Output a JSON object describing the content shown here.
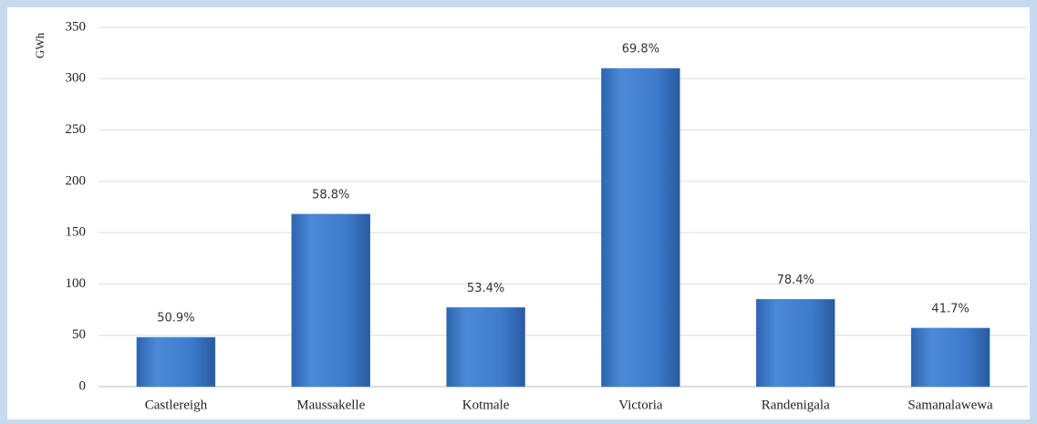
{
  "chart_data": {
    "type": "bar",
    "y_label": "GWh",
    "categories": [
      "Castlereigh",
      "Maussakelle",
      "Kotmale",
      "Victoria",
      "Randenigala",
      "Samanalawewa"
    ],
    "values": [
      48,
      168,
      77,
      310,
      85,
      57
    ],
    "annotations": [
      "50.9%",
      "58.8%",
      "53.4%",
      "69.8%",
      "78.4%",
      "41.7%"
    ],
    "color": "#3f7fd0",
    "ylim": [
      0,
      350
    ],
    "yticks": [
      0,
      50,
      100,
      150,
      200,
      250,
      300,
      350
    ],
    "grid": true
  }
}
